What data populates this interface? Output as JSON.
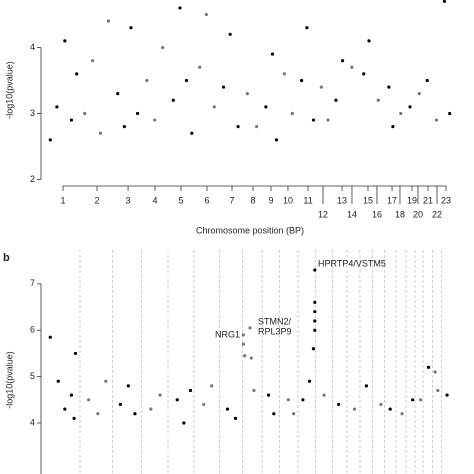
{
  "chart_data": [
    {
      "type": "scatter",
      "y_label": "-log10(pvalue)",
      "x_label": "Chromosome position (BP)",
      "xlim": [
        0,
        3100000000
      ],
      "ylim": [
        1.9,
        4.72
      ],
      "yticks": [
        2,
        3,
        4
      ],
      "xticks": [
        {
          "value": 136000000,
          "label": "1"
        },
        {
          "value": 393000000,
          "label": "2"
        },
        {
          "value": 628000000,
          "label": "3"
        },
        {
          "value": 832000000,
          "label": "4"
        },
        {
          "value": 1028000000,
          "label": "5"
        },
        {
          "value": 1225000000,
          "label": "6"
        },
        {
          "value": 1414000000,
          "label": "7"
        },
        {
          "value": 1573000000,
          "label": "8"
        },
        {
          "value": 1709000000,
          "label": "9"
        },
        {
          "value": 1837000000,
          "label": "10"
        },
        {
          "value": 1989000000,
          "label": "11"
        },
        {
          "value": 2102000000,
          "label": "12"
        },
        {
          "value": 2246000000,
          "label": "13"
        },
        {
          "value": 2321000000,
          "label": "14"
        },
        {
          "value": 2442000000,
          "label": "15"
        },
        {
          "value": 2510000000,
          "label": "16"
        },
        {
          "value": 2624000000,
          "label": "17"
        },
        {
          "value": 2684000000,
          "label": "18"
        },
        {
          "value": 2775000000,
          "label": "19"
        },
        {
          "value": 2820000000,
          "label": "20"
        },
        {
          "value": 2896000000,
          "label": "21"
        },
        {
          "value": 2964000000,
          "label": "22"
        },
        {
          "value": 3032000000,
          "label": "23"
        }
      ],
      "series": [
        {
          "color": "#000000",
          "x": [
            40000000,
            90000000,
            150000000,
            200000000,
            240000000,
            550000000,
            600000000,
            650000000,
            700000000,
            970000000,
            1020000000,
            1070000000,
            1110000000,
            1350000000,
            1400000000,
            1460000000,
            1670000000,
            1720000000,
            1750000000,
            1940000000,
            1980000000,
            2030000000,
            2200000000,
            2250000000,
            2410000000,
            2450000000,
            2600000000,
            2630000000,
            2760000000,
            2890000000,
            3020000000,
            3060000000
          ],
          "values": [
            2.6,
            3.1,
            4.1,
            2.9,
            3.6,
            3.3,
            2.8,
            4.3,
            3.0,
            3.2,
            4.6,
            3.5,
            2.7,
            3.4,
            4.2,
            2.8,
            3.1,
            3.9,
            2.6,
            3.5,
            4.3,
            2.9,
            3.2,
            3.8,
            3.6,
            4.1,
            3.4,
            2.8,
            3.1,
            3.5,
            4.7,
            3.0
          ]
        },
        {
          "color": "#777777",
          "x": [
            300000000,
            360000000,
            420000000,
            480000000,
            770000000,
            830000000,
            890000000,
            1170000000,
            1220000000,
            1280000000,
            1530000000,
            1600000000,
            1810000000,
            1870000000,
            2090000000,
            2140000000,
            2320000000,
            2520000000,
            2690000000,
            2830000000,
            2960000000
          ],
          "values": [
            3.0,
            3.8,
            2.7,
            4.4,
            3.5,
            2.9,
            4.0,
            3.7,
            4.5,
            3.1,
            3.3,
            2.8,
            3.6,
            3.0,
            3.4,
            2.9,
            3.7,
            3.2,
            3.0,
            3.3,
            2.9
          ]
        }
      ]
    },
    {
      "type": "scatter",
      "panel_label": "b",
      "y_label": "-log10(pvalue)",
      "xlim": [
        0,
        3100000000
      ],
      "ylim": [
        2.9,
        7.73
      ],
      "yticks": [
        4,
        5,
        6,
        7
      ],
      "annotations": [
        {
          "lines": [
            "HPRTP4/VSTM5"
          ]
        },
        {
          "lines": [
            "NRG1"
          ]
        },
        {
          "lines": [
            "STMN2/",
            "RPL3P9"
          ]
        }
      ],
      "series": [
        {
          "color": "#000000",
          "x": [
            40000000,
            100000000,
            150000000,
            200000000,
            220000000,
            230000000,
            570000000,
            630000000,
            680000000,
            1000000000,
            1050000000,
            1100000000,
            1380000000,
            1440000000,
            1690000000,
            1730000000,
            2040000000,
            2040000000,
            2040000000,
            2040000000,
            2040000000,
            2030000000,
            2000000000,
            1950000000,
            2220000000,
            2430000000,
            2610000000,
            2780000000,
            2900000000,
            3040000000
          ],
          "values": [
            5.85,
            4.9,
            4.3,
            4.6,
            4.1,
            5.5,
            4.4,
            4.8,
            4.2,
            4.5,
            4.0,
            4.7,
            4.3,
            4.1,
            4.6,
            4.2,
            7.3,
            6.6,
            6.4,
            6.2,
            6.0,
            5.6,
            4.9,
            4.5,
            4.4,
            4.8,
            4.3,
            4.5,
            5.2,
            4.6
          ]
        },
        {
          "color": "#777777",
          "x": [
            330000000,
            400000000,
            460000000,
            800000000,
            870000000,
            1200000000,
            1260000000,
            1500000000,
            1500000000,
            1510000000,
            1550000000,
            1560000000,
            1580000000,
            1840000000,
            1880000000,
            2110000000,
            2340000000,
            2540000000,
            2700000000,
            2840000000,
            2950000000,
            2970000000
          ],
          "values": [
            4.5,
            4.2,
            4.9,
            4.3,
            4.6,
            4.4,
            4.8,
            5.9,
            5.7,
            5.45,
            6.05,
            5.4,
            4.7,
            4.5,
            4.2,
            4.6,
            4.3,
            4.4,
            4.2,
            4.5,
            5.1,
            4.7
          ]
        }
      ]
    }
  ]
}
